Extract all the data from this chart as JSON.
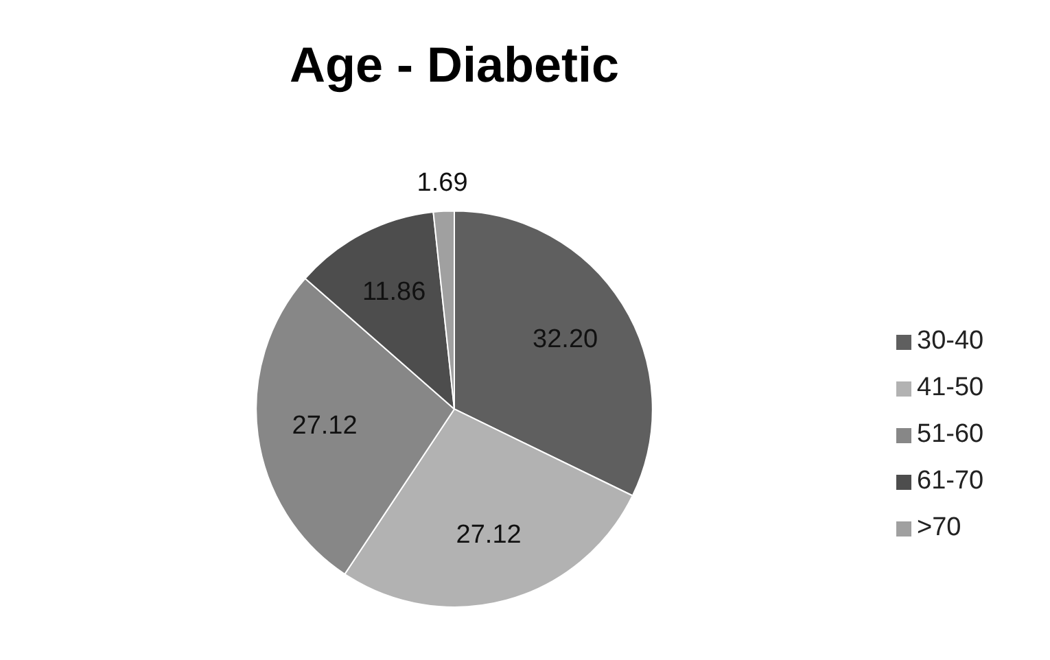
{
  "chart_data": {
    "type": "pie",
    "title": "Age - Diabetic",
    "categories": [
      "30-40",
      "41-50",
      "51-60",
      "61-70",
      ">70"
    ],
    "values": [
      32.2,
      27.12,
      27.12,
      11.86,
      1.69
    ],
    "value_labels": [
      "32.20",
      "27.12",
      "27.12",
      "11.86",
      "1.69"
    ],
    "colors": [
      "#5f5f5f",
      "#b2b2b2",
      "#878787",
      "#4d4d4d",
      "#a0a0a0"
    ],
    "legend": "right"
  }
}
